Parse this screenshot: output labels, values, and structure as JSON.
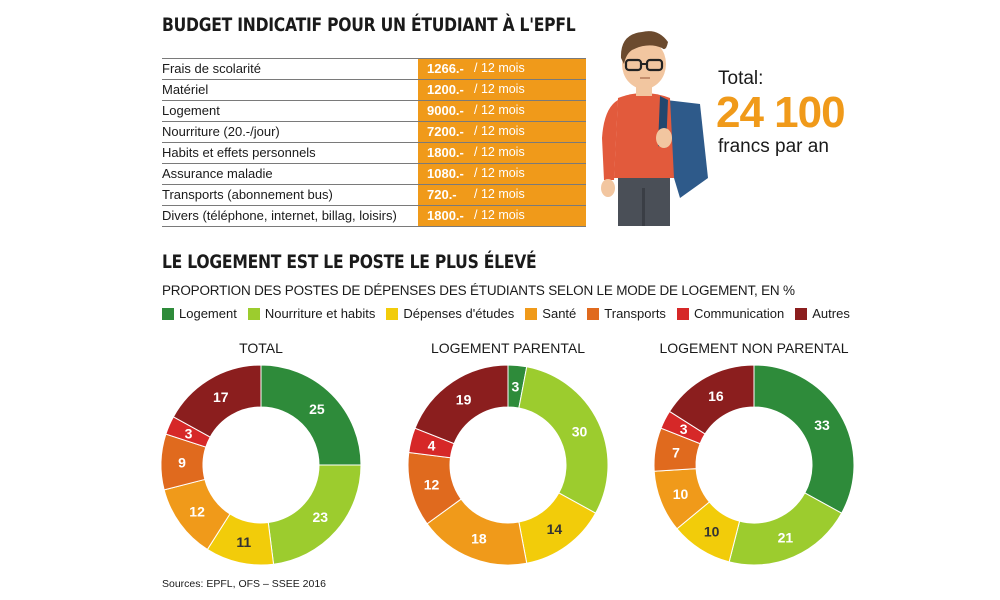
{
  "budget": {
    "title": "BUDGET INDICATIF POUR UN ÉTUDIANT À L'EPFL",
    "period": "/ 12 mois",
    "rows": [
      {
        "label": "Frais de scolarité",
        "amount": "1266.-"
      },
      {
        "label": "Matériel",
        "amount": "1200.-"
      },
      {
        "label": "Logement",
        "amount": "9000.-"
      },
      {
        "label": "Nourriture (20.-/jour)",
        "amount": "7200.-"
      },
      {
        "label": "Habits et effets personnels",
        "amount": "1800.-"
      },
      {
        "label": "Assurance maladie",
        "amount": "1080.-"
      },
      {
        "label": "Transports (abonnement bus)",
        "amount": "720.-"
      },
      {
        "label": "Divers (téléphone, internet, billag, loisirs)",
        "amount": "1800.-"
      }
    ],
    "total_label": "Total:",
    "total_value": "24 100",
    "total_unit": "francs par an"
  },
  "section2": {
    "title": "LE LOGEMENT EST LE POSTE LE PLUS ÉLEVÉ",
    "subtitle": "PROPORTION DES POSTES DE DÉPENSES DES ÉTUDIANTS SELON LE MODE DE LOGEMENT, EN %"
  },
  "chart_data": {
    "type": "pie",
    "style": "donut",
    "unit": "%",
    "categories": [
      "Logement",
      "Nourriture et habits",
      "Dépenses d'études",
      "Santé",
      "Transports",
      "Communication",
      "Autres"
    ],
    "colors": [
      "#2e8b3a",
      "#9ccc2e",
      "#f2cc0a",
      "#f09a1a",
      "#e06a1e",
      "#d62828",
      "#8b1e1e"
    ],
    "series": [
      {
        "name": "TOTAL",
        "values": [
          25,
          23,
          11,
          12,
          9,
          3,
          17
        ]
      },
      {
        "name": "LOGEMENT PARENTAL",
        "values": [
          3,
          30,
          14,
          18,
          12,
          4,
          19
        ]
      },
      {
        "name": "LOGEMENT NON PARENTAL",
        "values": [
          33,
          21,
          10,
          10,
          7,
          3,
          16
        ]
      }
    ]
  },
  "sources": "Sources:  EPFL, OFS – SSEE 2016"
}
